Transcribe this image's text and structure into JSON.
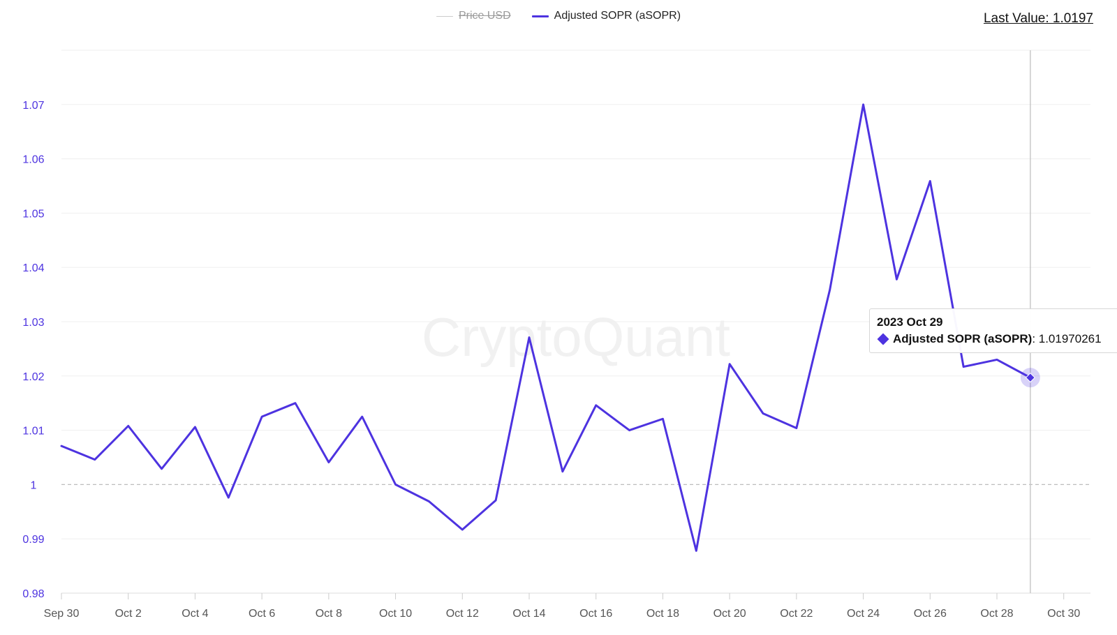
{
  "legend": {
    "price_label": "Price USD",
    "asopr_label": "Adjusted SOPR (aSOPR)"
  },
  "last_value": "Last Value: 1.0197",
  "watermark": "CryptoQuant",
  "tooltip": {
    "date": "2023 Oct 29",
    "series_name": "Adjusted SOPR (aSOPR)",
    "value_text": ": 1.01970261"
  },
  "colors": {
    "series": "#4d33e0",
    "grid": "#efefef",
    "baseline": "#bdbdbd",
    "axis_text": "#555555",
    "y_tick_text": "#4d33e0",
    "hidden_series": "#cccccc"
  },
  "chart_data": {
    "type": "line",
    "x": [
      "2023-09-30",
      "2023-10-01",
      "2023-10-02",
      "2023-10-03",
      "2023-10-04",
      "2023-10-05",
      "2023-10-06",
      "2023-10-07",
      "2023-10-08",
      "2023-10-09",
      "2023-10-10",
      "2023-10-11",
      "2023-10-12",
      "2023-10-13",
      "2023-10-14",
      "2023-10-15",
      "2023-10-16",
      "2023-10-17",
      "2023-10-18",
      "2023-10-19",
      "2023-10-20",
      "2023-10-21",
      "2023-10-22",
      "2023-10-23",
      "2023-10-24",
      "2023-10-25",
      "2023-10-26",
      "2023-10-27",
      "2023-10-28",
      "2023-10-29"
    ],
    "series": [
      {
        "name": "Adjusted SOPR (aSOPR)",
        "values": [
          1.0071,
          1.0046,
          1.0108,
          1.0029,
          1.0106,
          0.9976,
          1.0125,
          1.015,
          1.0041,
          1.0125,
          1.0,
          0.9969,
          0.9917,
          0.9971,
          1.0271,
          1.0024,
          1.0146,
          1.01,
          1.0121,
          0.9878,
          1.0222,
          1.0131,
          1.0104,
          1.0359,
          1.07,
          1.0378,
          1.0559,
          1.0217,
          1.023,
          1.0197
        ]
      }
    ],
    "hidden_series": [
      "Price USD"
    ],
    "x_ticks": [
      "Sep 30",
      "Oct 2",
      "Oct 4",
      "Oct 6",
      "Oct 8",
      "Oct 10",
      "Oct 12",
      "Oct 14",
      "Oct 16",
      "Oct 18",
      "Oct 20",
      "Oct 22",
      "Oct 24",
      "Oct 26",
      "Oct 28",
      "Oct 30"
    ],
    "y_ticks": [
      "0.98",
      "0.99",
      "1",
      "1.01",
      "1.02",
      "1.03",
      "1.04",
      "1.05",
      "1.06",
      "1.07"
    ],
    "ylim": [
      0.98,
      1.08
    ],
    "reference_line": 1.0,
    "highlight_date": "2023-10-29",
    "grid": true,
    "legend_position": "top-center"
  }
}
